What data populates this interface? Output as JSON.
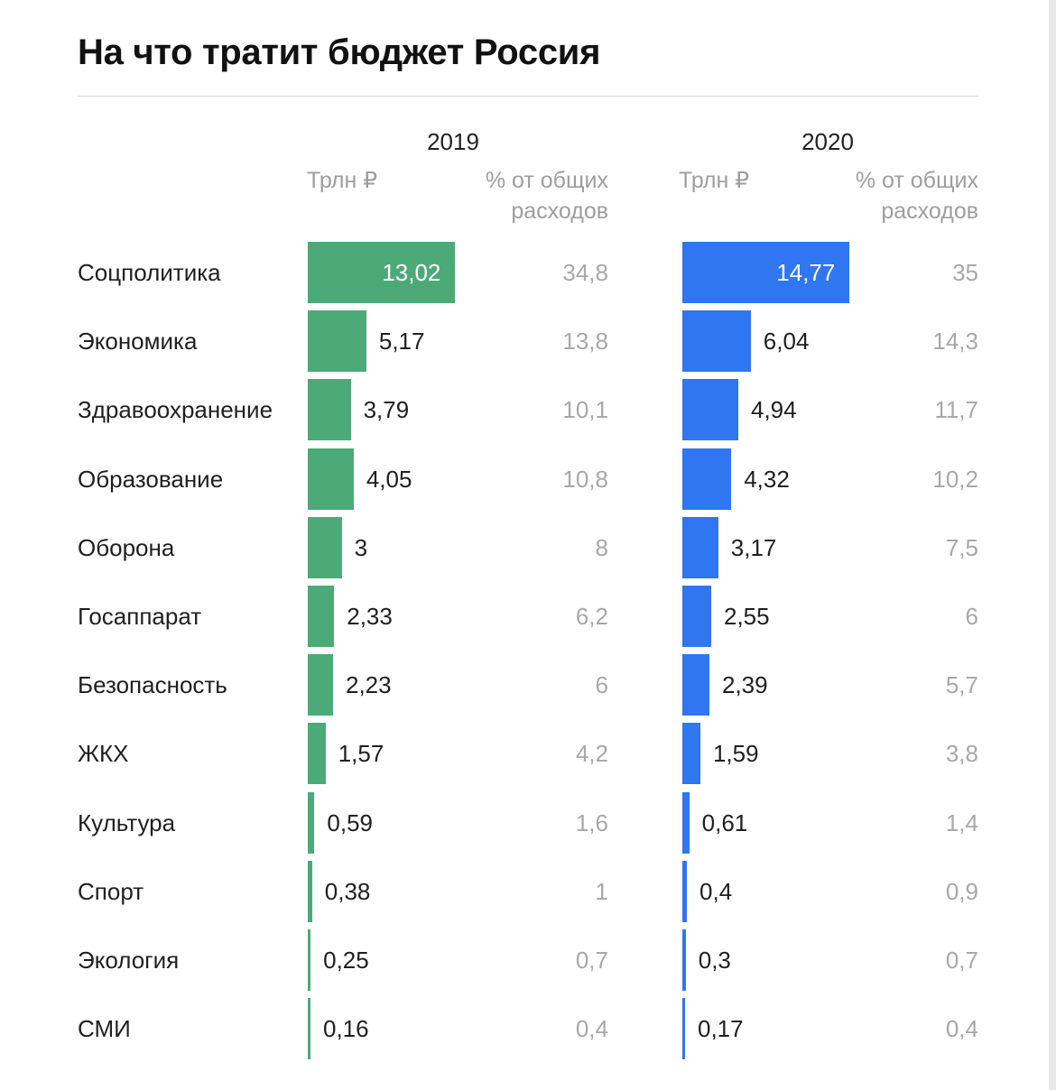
{
  "title": "На что тратит бюджет Россия",
  "chart_data": {
    "type": "bar",
    "categories": [
      "Соцполитика",
      "Экономика",
      "Здравоохранение",
      "Образование",
      "Оборона",
      "Госаппарат",
      "Безопасность",
      "ЖКХ",
      "Культура",
      "Спорт",
      "Экология",
      "СМИ"
    ],
    "column_headers": {
      "value": "Трлн ₽",
      "share": "% от общих расходов"
    },
    "series": [
      {
        "name": "2019",
        "color": "#4caa78",
        "values": [
          13.02,
          5.17,
          3.79,
          4.05,
          3,
          2.33,
          2.23,
          1.57,
          0.59,
          0.38,
          0.25,
          0.16
        ],
        "labels": [
          "13,02",
          "5,17",
          "3,79",
          "4,05",
          "3",
          "2,33",
          "2,23",
          "1,57",
          "0,59",
          "0,38",
          "0,25",
          "0,16"
        ],
        "shares": [
          "34,8",
          "13,8",
          "10,1",
          "10,8",
          "8",
          "6,2",
          "6",
          "4,2",
          "1,6",
          "1",
          "0,7",
          "0,4"
        ]
      },
      {
        "name": "2020",
        "color": "#2f76f0",
        "values": [
          14.77,
          6.04,
          4.94,
          4.32,
          3.17,
          2.55,
          2.39,
          1.59,
          0.61,
          0.4,
          0.3,
          0.17
        ],
        "labels": [
          "14,77",
          "6,04",
          "4,94",
          "4,32",
          "3,17",
          "2,55",
          "2,39",
          "1,59",
          "0,61",
          "0,4",
          "0,3",
          "0,17"
        ],
        "shares": [
          "35",
          "14,3",
          "11,7",
          "10,2",
          "7,5",
          "6",
          "5,7",
          "3,8",
          "1,4",
          "0,9",
          "0,7",
          "0,4"
        ]
      }
    ]
  }
}
